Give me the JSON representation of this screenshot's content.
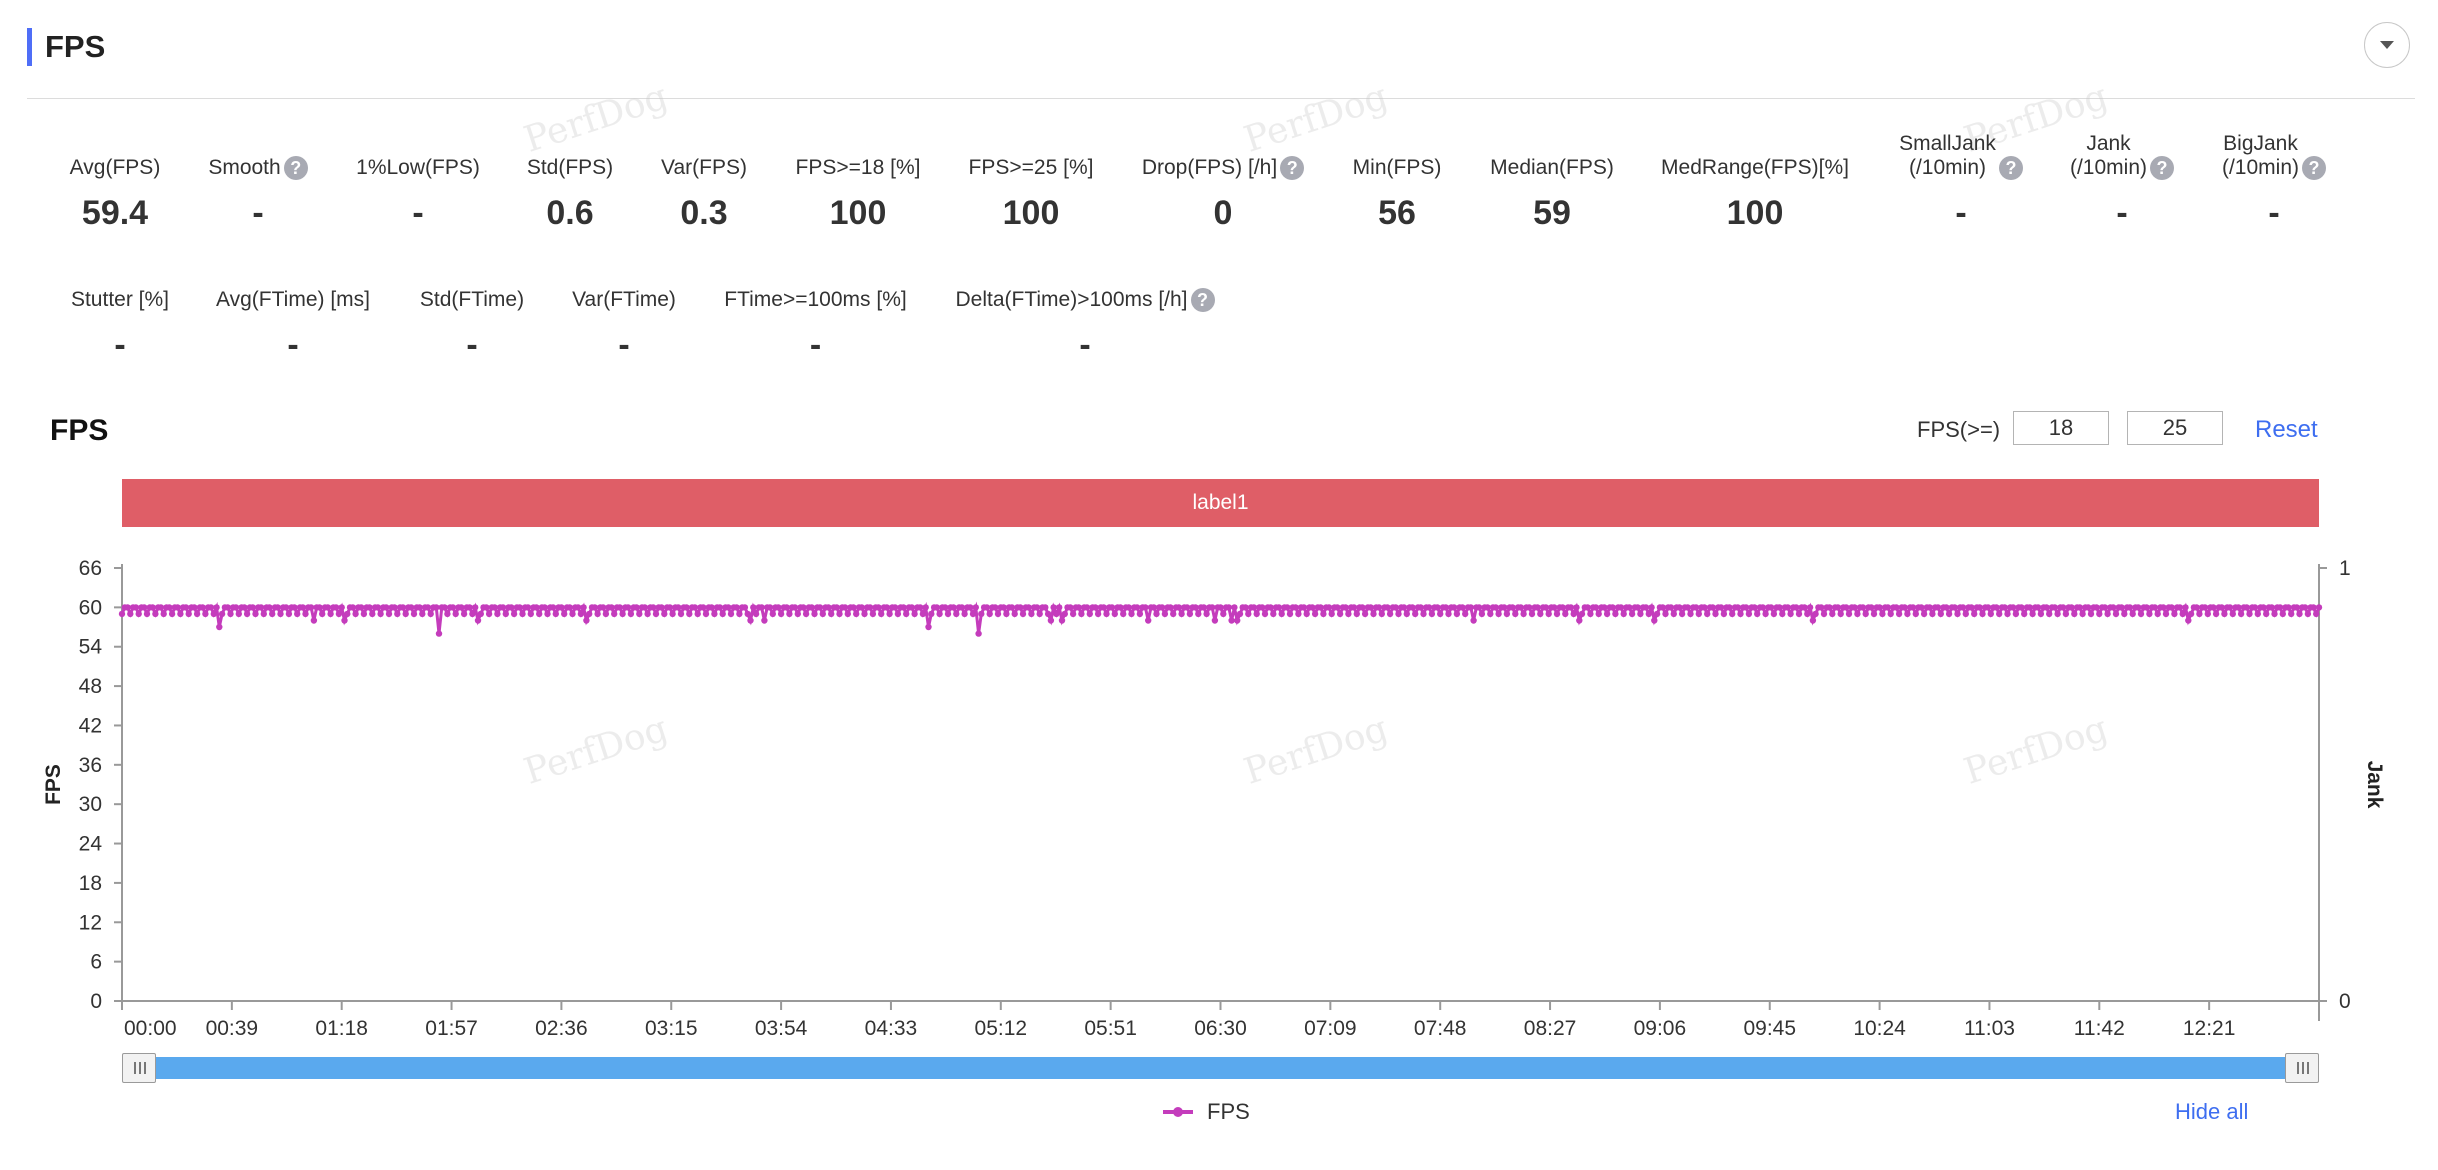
{
  "header": {
    "title": "FPS",
    "collapse_icon": "chevron-down-icon"
  },
  "stats_row1": [
    {
      "label": "Avg(FPS)",
      "value": "59.4",
      "help": false
    },
    {
      "label": "Smooth",
      "value": "-",
      "help": true
    },
    {
      "label": "1%Low(FPS)",
      "value": "-",
      "help": false
    },
    {
      "label": "Std(FPS)",
      "value": "0.6",
      "help": false
    },
    {
      "label": "Var(FPS)",
      "value": "0.3",
      "help": false
    },
    {
      "label": "FPS>=18 [%]",
      "value": "100",
      "help": false
    },
    {
      "label": "FPS>=25 [%]",
      "value": "100",
      "help": false
    },
    {
      "label": "Drop(FPS) [/h]",
      "value": "0",
      "help": true
    },
    {
      "label": "Min(FPS)",
      "value": "56",
      "help": false
    },
    {
      "label": "Median(FPS)",
      "value": "59",
      "help": false
    },
    {
      "label": "MedRange(FPS)[%]",
      "value": "100",
      "help": false
    },
    {
      "label": "SmallJank",
      "label2": "(/10min)",
      "value": "-",
      "help": true
    },
    {
      "label": "Jank",
      "label2": "(/10min)",
      "value": "-",
      "help": true
    },
    {
      "label": "BigJank",
      "label2": "(/10min)",
      "value": "-",
      "help": true
    }
  ],
  "stats_row2": [
    {
      "label": "Stutter [%]",
      "value": "-",
      "help": false
    },
    {
      "label": "Avg(FTime) [ms]",
      "value": "-",
      "help": false
    },
    {
      "label": "Std(FTime)",
      "value": "-",
      "help": false
    },
    {
      "label": "Var(FTime)",
      "value": "-",
      "help": false
    },
    {
      "label": "FTime>=100ms [%]",
      "value": "-",
      "help": false
    },
    {
      "label": "Delta(FTime)>100ms [/h]",
      "value": "-",
      "help": true
    }
  ],
  "help_glyph": "?",
  "watermark": "PerfDog",
  "chart_section": {
    "title": "FPS",
    "threshold_label": "FPS(>=)",
    "threshold_low": "18",
    "threshold_high": "25",
    "reset_label": "Reset",
    "label_band": "label1"
  },
  "chart_data": {
    "type": "line",
    "ylabel": "FPS",
    "y2label": "Jank",
    "ylim": [
      0,
      66
    ],
    "yticks": [
      "0",
      "6",
      "12",
      "18",
      "24",
      "30",
      "36",
      "42",
      "48",
      "54",
      "60",
      "66"
    ],
    "y2lim": [
      0,
      1
    ],
    "y2ticks": [
      "0",
      "1"
    ],
    "xlim_seconds": [
      0,
      790
    ],
    "xticks": [
      "00:00",
      "00:39",
      "01:18",
      "01:57",
      "02:36",
      "03:15",
      "03:54",
      "04:33",
      "05:12",
      "05:51",
      "06:30",
      "07:09",
      "07:48",
      "08:27",
      "09:06",
      "09:45",
      "10:24",
      "11:03",
      "11:42",
      "12:21"
    ],
    "grid": false,
    "legend_position": "bottom-center",
    "series": [
      {
        "name": "FPS",
        "color": "#c43cbc",
        "baseline_values": [
          59,
          60
        ],
        "dips": [
          {
            "t": 35,
            "fps": 57
          },
          {
            "t": 69,
            "fps": 58
          },
          {
            "t": 80,
            "fps": 58
          },
          {
            "t": 114,
            "fps": 56
          },
          {
            "t": 128,
            "fps": 58
          },
          {
            "t": 167,
            "fps": 58
          },
          {
            "t": 226,
            "fps": 58
          },
          {
            "t": 231,
            "fps": 58
          },
          {
            "t": 290,
            "fps": 57
          },
          {
            "t": 308,
            "fps": 56
          },
          {
            "t": 334,
            "fps": 58
          },
          {
            "t": 338,
            "fps": 58
          },
          {
            "t": 369,
            "fps": 58
          },
          {
            "t": 393,
            "fps": 58
          },
          {
            "t": 399,
            "fps": 58
          },
          {
            "t": 401,
            "fps": 58
          },
          {
            "t": 486,
            "fps": 58
          },
          {
            "t": 524,
            "fps": 58
          },
          {
            "t": 551,
            "fps": 58
          },
          {
            "t": 608,
            "fps": 58
          },
          {
            "t": 743,
            "fps": 58
          }
        ]
      }
    ]
  },
  "slider": {
    "left_handle_icon": "grip-icon",
    "right_handle_icon": "grip-icon"
  },
  "legend": {
    "label": "FPS",
    "hide_all_label": "Hide all"
  }
}
